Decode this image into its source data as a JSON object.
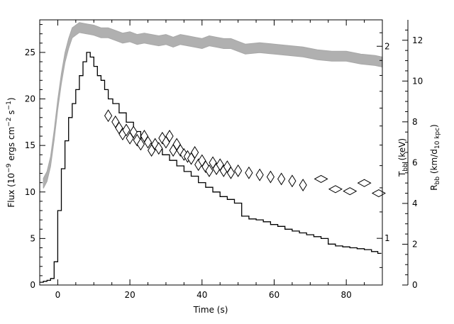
{
  "chart_data": {
    "type": "line",
    "xlabel": "Time (s)",
    "xlim": [
      -5,
      90
    ],
    "x_ticks": [
      0,
      20,
      40,
      60,
      80
    ],
    "y_left": {
      "label_parts": [
        "Flux (10",
        "−9",
        " ergs cm",
        "−2",
        " s",
        "−1",
        ")"
      ],
      "ylim": [
        0,
        28.5
      ],
      "ticks": [
        0,
        5,
        10,
        15,
        20,
        25
      ]
    },
    "y_right_inner": {
      "label_parts": [
        "T",
        "bb",
        " (keV)"
      ],
      "ylim": [
        0.845,
        2.2
      ],
      "ticks": [
        1,
        2
      ],
      "scale": "log"
    },
    "y_right_outer": {
      "label_parts": [
        "R",
        "bb",
        " (km/d",
        "10 kpc",
        ")"
      ],
      "ylim": [
        0,
        13
      ],
      "ticks": [
        0,
        2,
        4,
        6,
        8,
        10,
        12
      ]
    },
    "series": [
      {
        "kind": "flux",
        "axis": "y_left",
        "style": "black histogram",
        "x": [
          -4.5,
          -3.5,
          -2.5,
          -1.5,
          -0.5,
          0.5,
          1.5,
          2.5,
          3.5,
          4.5,
          5.5,
          6.5,
          7.5,
          8.5,
          9.5,
          10.5,
          11.5,
          12.5,
          13.5,
          14.5,
          16,
          18,
          20,
          22,
          24,
          26,
          28,
          30,
          32,
          34,
          36,
          38,
          40,
          42,
          44,
          46,
          48,
          50,
          52,
          54,
          56,
          58,
          60,
          62,
          64,
          66,
          68,
          70,
          72,
          74,
          76,
          78,
          80,
          82,
          84,
          86,
          88,
          89.5
        ],
        "values": [
          0.3,
          0.4,
          0.5,
          0.7,
          2.5,
          8.0,
          12.5,
          15.5,
          18.0,
          19.5,
          21.0,
          22.5,
          24.0,
          25.0,
          24.5,
          23.5,
          22.5,
          22.0,
          21.0,
          20.0,
          19.5,
          18.5,
          17.5,
          16.5,
          15.8,
          15.2,
          14.6,
          14.0,
          13.4,
          12.8,
          12.2,
          11.7,
          11.0,
          10.5,
          10.0,
          9.5,
          9.2,
          8.8,
          7.4,
          7.1,
          7.0,
          6.8,
          6.5,
          6.3,
          6.0,
          5.8,
          5.6,
          5.4,
          5.2,
          5.0,
          4.4,
          4.2,
          4.1,
          4.0,
          3.9,
          3.8,
          3.6,
          3.4
        ]
      },
      {
        "kind": "temperature",
        "axis": "y_right_inner",
        "style": "grey band",
        "x": [
          -4,
          -3,
          -2,
          -1,
          0,
          1,
          2,
          3,
          4,
          5,
          6,
          8,
          10,
          12,
          14,
          16,
          18,
          20,
          22,
          24,
          26,
          28,
          30,
          32,
          34,
          36,
          38,
          40,
          42,
          44,
          46,
          48,
          50,
          52,
          56,
          60,
          64,
          68,
          72,
          76,
          80,
          84,
          88,
          90
        ],
        "values": [
          1.22,
          1.25,
          1.32,
          1.45,
          1.62,
          1.78,
          1.92,
          2.02,
          2.1,
          2.12,
          2.14,
          2.13,
          2.12,
          2.1,
          2.1,
          2.08,
          2.06,
          2.07,
          2.05,
          2.06,
          2.05,
          2.04,
          2.05,
          2.03,
          2.05,
          2.04,
          2.03,
          2.02,
          2.04,
          2.03,
          2.02,
          2.02,
          2.0,
          1.98,
          1.99,
          1.98,
          1.97,
          1.96,
          1.94,
          1.93,
          1.93,
          1.91,
          1.9,
          1.89
        ],
        "band_halfwidth": 0.018
      },
      {
        "kind": "radius",
        "axis": "y_right_outer",
        "style": "open diamonds",
        "x": [
          14,
          16,
          17,
          18,
          19,
          20,
          21,
          22,
          23,
          24,
          25,
          26,
          27,
          28,
          29,
          30,
          31,
          32,
          33,
          34,
          35,
          36,
          37,
          38,
          39,
          40,
          41,
          42,
          43,
          44,
          45,
          46,
          47,
          48,
          50,
          53,
          56,
          59,
          62,
          65,
          68,
          73,
          77,
          81,
          85,
          89
        ],
        "values": [
          8.3,
          8.0,
          7.7,
          7.4,
          7.6,
          7.2,
          7.5,
          7.1,
          6.9,
          7.3,
          7.0,
          6.6,
          6.9,
          6.7,
          7.2,
          7.0,
          7.3,
          6.6,
          6.9,
          6.6,
          6.4,
          6.3,
          6.2,
          6.5,
          5.9,
          6.1,
          5.8,
          5.6,
          6.0,
          5.7,
          5.9,
          5.6,
          5.8,
          5.5,
          5.6,
          5.5,
          5.4,
          5.3,
          5.2,
          5.1,
          4.9,
          5.2,
          4.7,
          4.6,
          5.0,
          4.5
        ]
      }
    ]
  }
}
